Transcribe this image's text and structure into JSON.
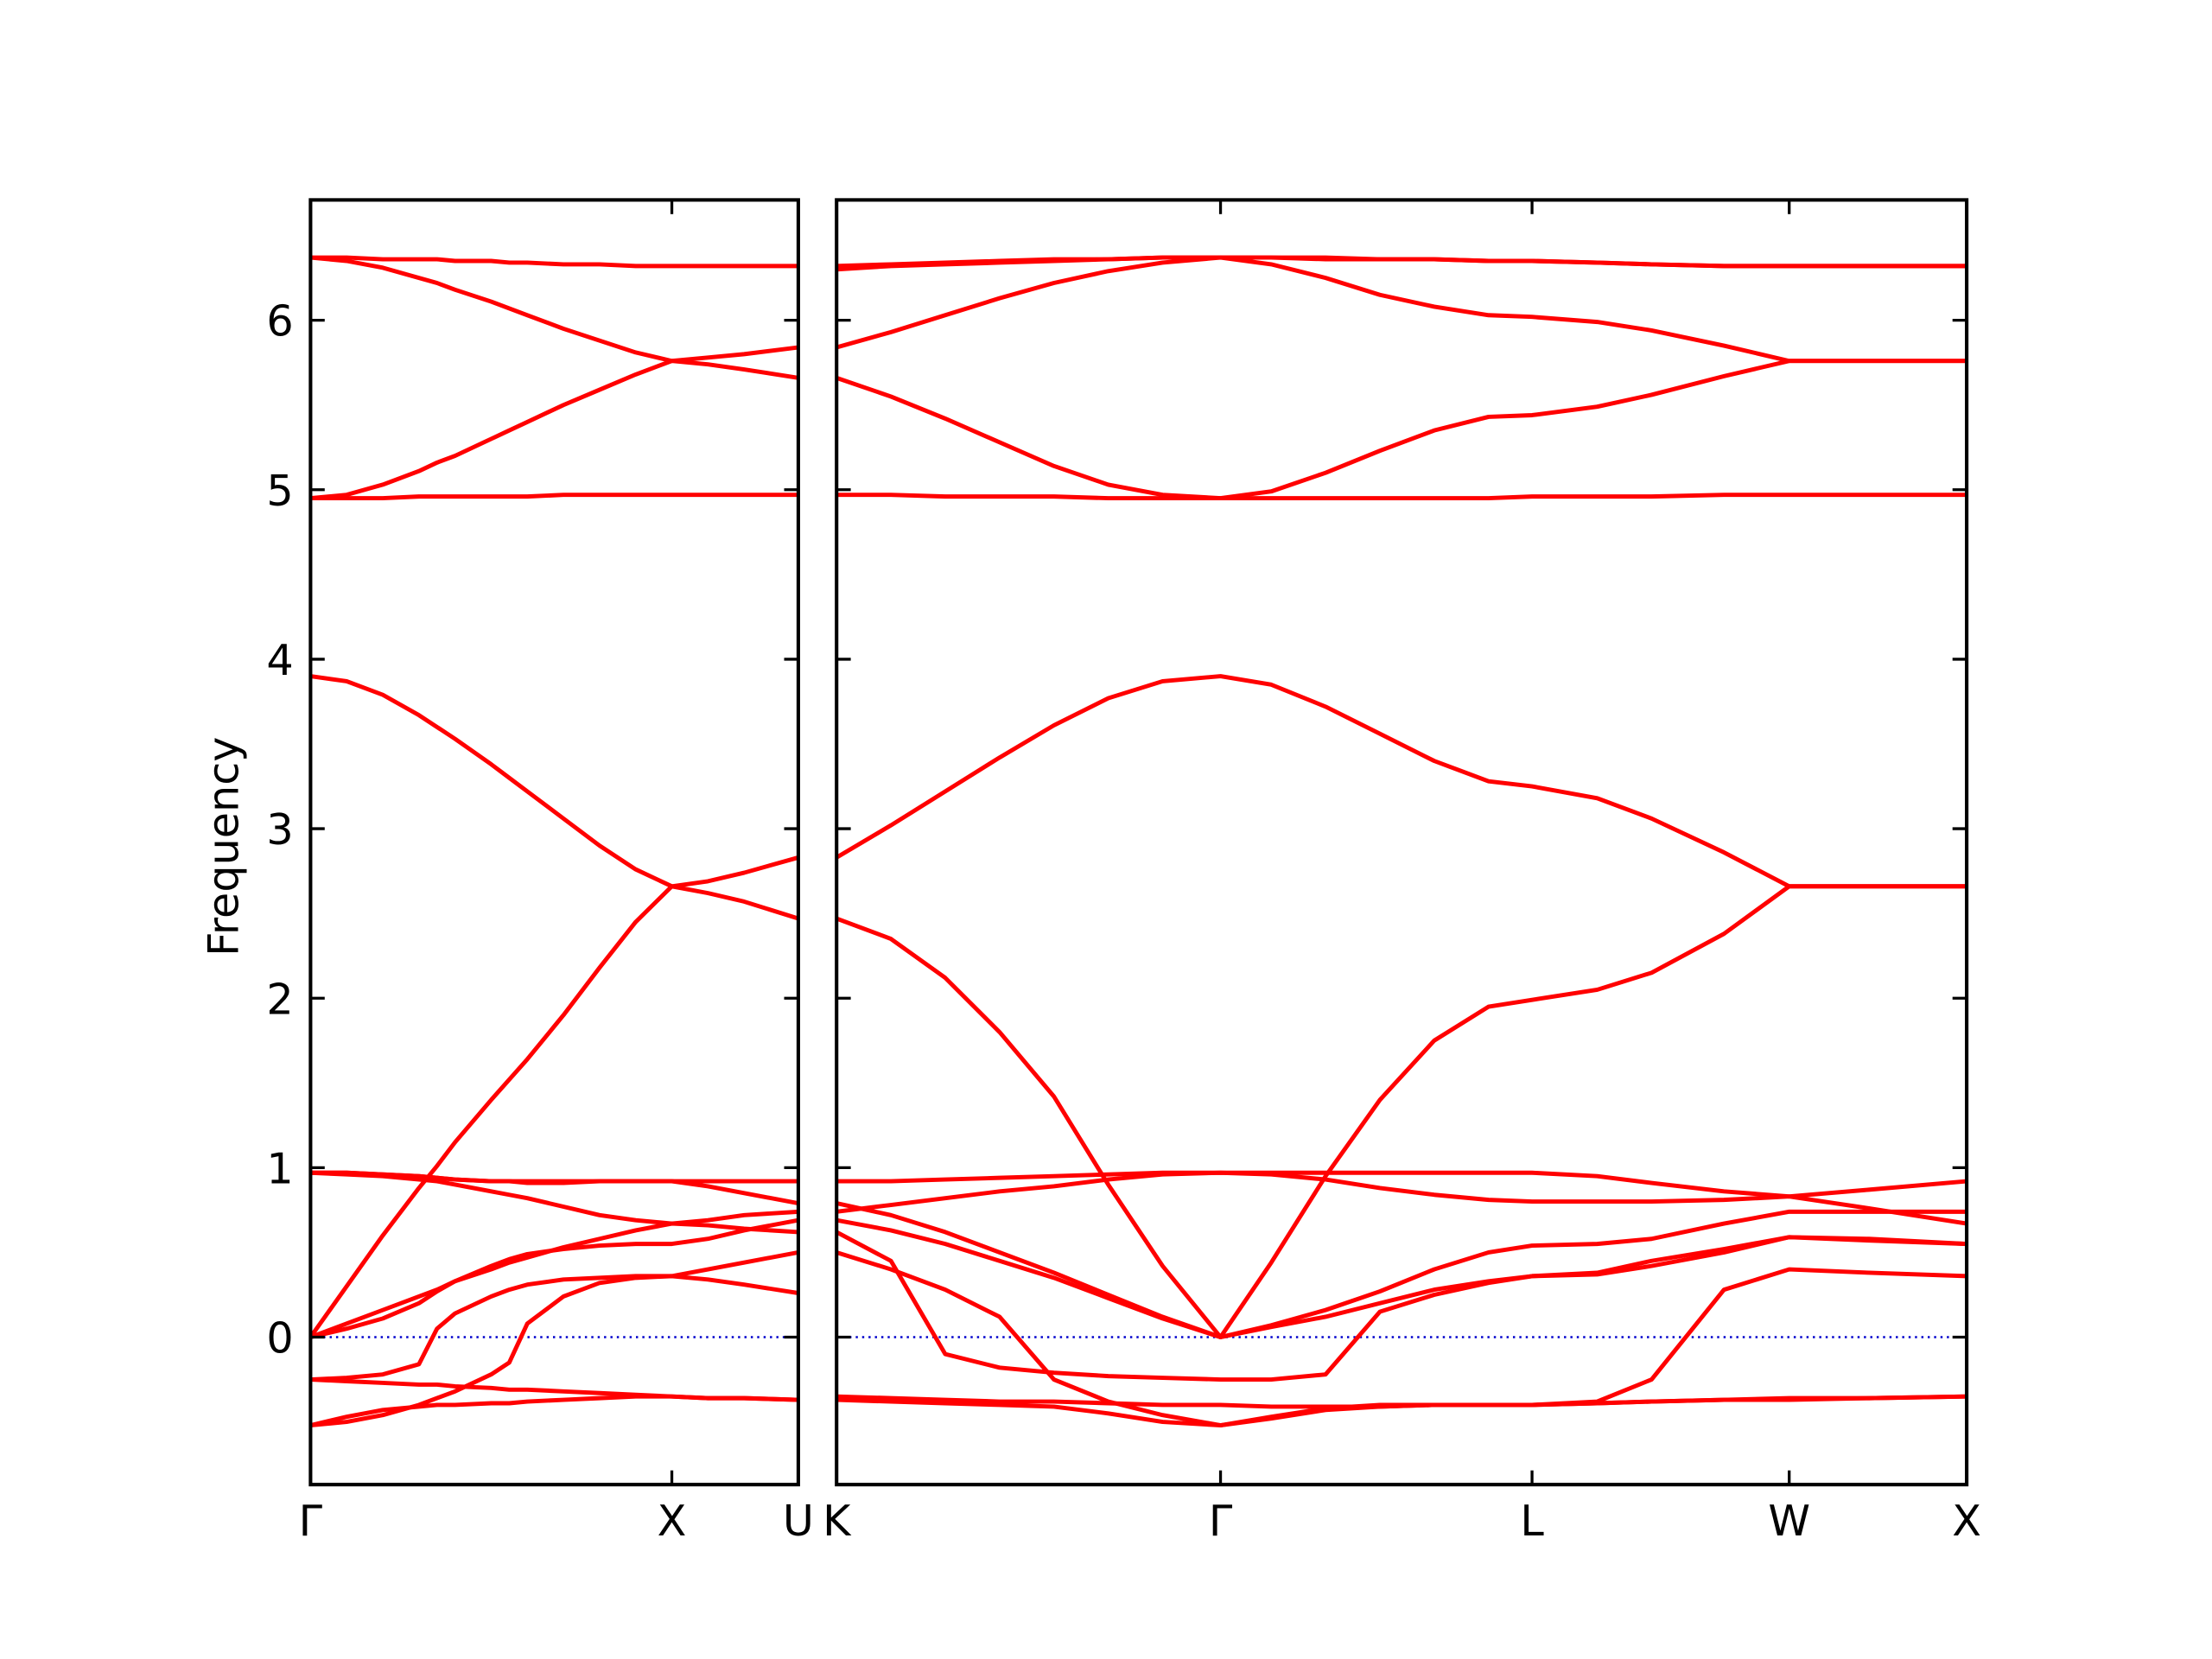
{
  "chart_data": [
    {
      "type": "line",
      "ylabel": "Frequency",
      "color": "#ff0000",
      "show_ytick_labels": true,
      "zero_line": {
        "value": 0,
        "color": "#0000cc",
        "style": "dotted"
      },
      "xlim": [
        0,
        1.35
      ],
      "ylim": [
        -0.87,
        6.71
      ],
      "xticks": [
        {
          "value": 0,
          "label": "Γ"
        },
        {
          "value": 1,
          "label": "X"
        },
        {
          "value": 1.35,
          "label": "U"
        }
      ],
      "yticks": [
        0,
        1,
        2,
        3,
        4,
        5,
        6
      ],
      "x": [
        0,
        0.1,
        0.2,
        0.3,
        0.35,
        0.4,
        0.5,
        0.55,
        0.6,
        0.7,
        0.8,
        0.9,
        1.0,
        1.1,
        1.2,
        1.35
      ],
      "series": [
        {
          "values": [
            6.37,
            6.37,
            6.36,
            6.36,
            6.36,
            6.35,
            6.35,
            6.34,
            6.34,
            6.33,
            6.33,
            6.32,
            6.32,
            6.32,
            6.32,
            6.32
          ]
        },
        {
          "values": [
            6.37,
            6.35,
            6.31,
            6.25,
            6.22,
            6.18,
            6.11,
            6.07,
            6.03,
            5.95,
            5.88,
            5.81,
            5.76,
            5.78,
            5.8,
            5.84
          ]
        },
        {
          "values": [
            4.95,
            4.97,
            5.03,
            5.11,
            5.16,
            5.2,
            5.3,
            5.35,
            5.4,
            5.5,
            5.59,
            5.68,
            5.76,
            5.74,
            5.71,
            5.66
          ]
        },
        {
          "values": [
            4.95,
            4.95,
            4.95,
            4.96,
            4.96,
            4.96,
            4.96,
            4.96,
            4.96,
            4.97,
            4.97,
            4.97,
            4.97,
            4.97,
            4.97,
            4.97
          ]
        },
        {
          "values": [
            3.9,
            3.87,
            3.79,
            3.67,
            3.6,
            3.53,
            3.38,
            3.3,
            3.22,
            3.06,
            2.9,
            2.76,
            2.66,
            2.69,
            2.74,
            2.83
          ]
        },
        {
          "values": [
            0,
            0.3,
            0.6,
            0.88,
            1.01,
            1.15,
            1.4,
            1.52,
            1.64,
            1.9,
            2.18,
            2.45,
            2.66,
            2.62,
            2.57,
            2.47
          ]
        },
        {
          "values": [
            0.97,
            0.97,
            0.96,
            0.95,
            0.94,
            0.93,
            0.92,
            0.92,
            0.91,
            0.91,
            0.92,
            0.92,
            0.92,
            0.92,
            0.92,
            0.92
          ]
        },
        {
          "values": [
            0.97,
            0.96,
            0.95,
            0.93,
            0.92,
            0.9,
            0.86,
            0.84,
            0.82,
            0.77,
            0.72,
            0.69,
            0.67,
            0.69,
            0.72,
            0.74
          ]
        },
        {
          "values": [
            0.97,
            0.97,
            0.96,
            0.95,
            0.94,
            0.93,
            0.92,
            0.92,
            0.92,
            0.92,
            0.92,
            0.92,
            0.92,
            0.89,
            0.85,
            0.79
          ]
        },
        {
          "values": [
            0,
            0.08,
            0.16,
            0.24,
            0.28,
            0.33,
            0.42,
            0.46,
            0.49,
            0.52,
            0.54,
            0.55,
            0.55,
            0.58,
            0.63,
            0.69
          ]
        },
        {
          "values": [
            0,
            0.05,
            0.11,
            0.2,
            0.27,
            0.33,
            0.4,
            0.44,
            0.47,
            0.53,
            0.58,
            0.63,
            0.67,
            0.66,
            0.64,
            0.62
          ]
        },
        {
          "values": [
            -0.25,
            -0.24,
            -0.22,
            -0.16,
            0.05,
            0.14,
            0.24,
            0.28,
            0.31,
            0.34,
            0.35,
            0.36,
            0.36,
            0.4,
            0.44,
            0.5
          ]
        },
        {
          "values": [
            -0.52,
            -0.5,
            -0.46,
            -0.4,
            -0.36,
            -0.32,
            -0.22,
            -0.15,
            0.08,
            0.24,
            0.32,
            0.35,
            0.36,
            0.34,
            0.31,
            0.26
          ]
        },
        {
          "values": [
            -0.52,
            -0.47,
            -0.43,
            -0.41,
            -0.4,
            -0.4,
            -0.39,
            -0.39,
            -0.38,
            -0.37,
            -0.36,
            -0.35,
            -0.35,
            -0.36,
            -0.36,
            -0.37
          ]
        },
        {
          "values": [
            -0.25,
            -0.26,
            -0.27,
            -0.28,
            -0.28,
            -0.29,
            -0.3,
            -0.31,
            -0.31,
            -0.32,
            -0.33,
            -0.34,
            -0.35,
            -0.36,
            -0.36,
            -0.37
          ]
        }
      ]
    },
    {
      "type": "line",
      "color": "#ff0000",
      "show_ytick_labels": false,
      "zero_line": {
        "value": 0,
        "color": "#0000cc",
        "style": "dotted"
      },
      "xlim": [
        1.35,
        4.47
      ],
      "ylim": [
        -0.87,
        6.71
      ],
      "xticks": [
        {
          "value": 1.35,
          "label": "K"
        },
        {
          "value": 2.41,
          "label": "Γ"
        },
        {
          "value": 3.27,
          "label": "L"
        },
        {
          "value": 3.98,
          "label": "W"
        },
        {
          "value": 4.47,
          "label": "X"
        }
      ],
      "yticks": [
        0,
        1,
        2,
        3,
        4,
        5,
        6
      ],
      "x": [
        1.35,
        1.5,
        1.65,
        1.8,
        1.95,
        2.1,
        2.25,
        2.41,
        2.55,
        2.7,
        2.85,
        3.0,
        3.15,
        3.27,
        3.45,
        3.6,
        3.8,
        3.98,
        4.2,
        4.47
      ],
      "series": [
        {
          "values": [
            6.32,
            6.33,
            6.34,
            6.35,
            6.36,
            6.36,
            6.37,
            6.37,
            6.37,
            6.36,
            6.36,
            6.36,
            6.35,
            6.35,
            6.34,
            6.33,
            6.32,
            6.32,
            6.32,
            6.32
          ]
        },
        {
          "values": [
            5.84,
            5.93,
            6.03,
            6.13,
            6.22,
            6.29,
            6.34,
            6.37,
            6.33,
            6.25,
            6.15,
            6.08,
            6.03,
            6.02,
            5.99,
            5.94,
            5.85,
            5.76,
            5.76,
            5.76
          ]
        },
        {
          "values": [
            5.66,
            5.55,
            5.42,
            5.28,
            5.14,
            5.03,
            4.97,
            4.95,
            4.99,
            5.1,
            5.23,
            5.35,
            5.43,
            5.44,
            5.49,
            5.56,
            5.67,
            5.76,
            5.76,
            5.76
          ]
        },
        {
          "values": [
            4.97,
            4.97,
            4.96,
            4.96,
            4.96,
            4.95,
            4.95,
            4.95,
            4.95,
            4.95,
            4.95,
            4.95,
            4.95,
            4.96,
            4.96,
            4.96,
            4.97,
            4.97,
            4.97,
            4.97
          ]
        },
        {
          "values": [
            6.3,
            6.32,
            6.33,
            6.34,
            6.35,
            6.36,
            6.37,
            6.37,
            6.37,
            6.37,
            6.36,
            6.36,
            6.35,
            6.35,
            6.34,
            6.33,
            6.32,
            6.32,
            6.32,
            6.32
          ]
        },
        {
          "values": [
            2.83,
            3.02,
            3.22,
            3.42,
            3.61,
            3.77,
            3.87,
            3.9,
            3.85,
            3.72,
            3.56,
            3.4,
            3.28,
            3.25,
            3.18,
            3.06,
            2.86,
            2.66,
            2.66,
            2.66
          ]
        },
        {
          "values": [
            2.47,
            2.35,
            2.12,
            1.8,
            1.42,
            0.9,
            0.42,
            0,
            0.44,
            0.95,
            1.4,
            1.75,
            1.95,
            1.99,
            2.05,
            2.15,
            2.38,
            2.66,
            2.66,
            2.66
          ]
        },
        {
          "values": [
            0.92,
            0.92,
            0.93,
            0.94,
            0.95,
            0.96,
            0.97,
            0.97,
            0.97,
            0.97,
            0.97,
            0.97,
            0.97,
            0.97,
            0.95,
            0.91,
            0.86,
            0.83,
            0.87,
            0.92
          ]
        },
        {
          "values": [
            0.74,
            0.78,
            0.82,
            0.86,
            0.89,
            0.93,
            0.96,
            0.97,
            0.96,
            0.93,
            0.88,
            0.84,
            0.81,
            0.8,
            0.8,
            0.8,
            0.81,
            0.83,
            0.76,
            0.67
          ]
        },
        {
          "values": [
            0.79,
            0.72,
            0.62,
            0.5,
            0.38,
            0.25,
            0.12,
            0,
            0.07,
            0.16,
            0.27,
            0.4,
            0.5,
            0.54,
            0.55,
            0.58,
            0.67,
            0.74,
            0.74,
            0.74
          ]
        },
        {
          "values": [
            0.69,
            0.63,
            0.55,
            0.45,
            0.35,
            0.23,
            0.11,
            0,
            0.06,
            0.12,
            0.2,
            0.28,
            0.33,
            0.36,
            0.38,
            0.45,
            0.52,
            0.59,
            0.58,
            0.55
          ]
        },
        {
          "values": [
            0.62,
            0.45,
            -0.1,
            -0.18,
            -0.21,
            -0.23,
            -0.24,
            -0.25,
            -0.25,
            -0.22,
            0.15,
            0.25,
            0.32,
            0.36,
            0.37,
            0.42,
            0.5,
            0.59,
            0.57,
            0.55
          ]
        },
        {
          "values": [
            0.5,
            0.4,
            0.28,
            0.12,
            -0.25,
            -0.38,
            -0.46,
            -0.52,
            -0.48,
            -0.43,
            -0.41,
            -0.4,
            -0.4,
            -0.4,
            -0.39,
            -0.38,
            -0.37,
            -0.36,
            -0.36,
            -0.35
          ]
        },
        {
          "values": [
            -0.37,
            -0.38,
            -0.39,
            -0.4,
            -0.41,
            -0.45,
            -0.5,
            -0.52,
            -0.47,
            -0.42,
            -0.4,
            -0.4,
            -0.4,
            -0.4,
            -0.38,
            -0.25,
            0.28,
            0.4,
            0.38,
            0.36
          ]
        },
        {
          "values": [
            -0.35,
            -0.36,
            -0.37,
            -0.38,
            -0.38,
            -0.39,
            -0.4,
            -0.4,
            -0.41,
            -0.41,
            -0.41,
            -0.4,
            -0.4,
            -0.4,
            -0.39,
            -0.38,
            -0.37,
            -0.37,
            -0.36,
            -0.35
          ]
        }
      ]
    }
  ]
}
